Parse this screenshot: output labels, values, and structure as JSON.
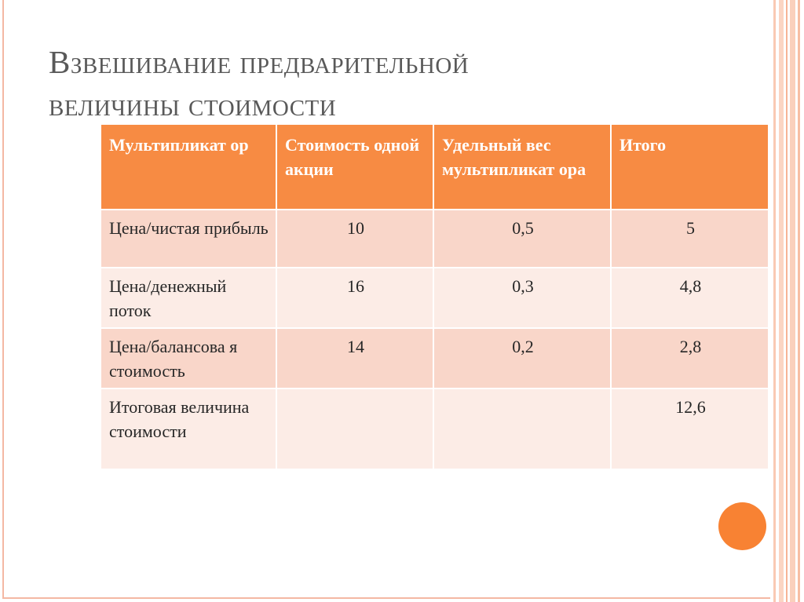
{
  "slide": {
    "title_line1": "Взвешивание предварительной",
    "title_line2": "величины стоимости"
  },
  "table": {
    "headers": [
      "Мультипликат ор",
      "Стоимость одной акции",
      "Удельный вес мультипликат ора",
      "Итого"
    ],
    "rows": [
      {
        "multiplier": "Цена/чистая прибыль",
        "price": "10",
        "weight": "0,5",
        "total": "5"
      },
      {
        "multiplier": "Цена/денежный поток",
        "price": "16",
        "weight": "0,3",
        "total": "4,8"
      },
      {
        "multiplier": "Цена/балансова я стоимость",
        "price": "14",
        "weight": "0,2",
        "total": "2,8"
      },
      {
        "multiplier": "Итоговая величина стоимости",
        "price": "",
        "weight": "",
        "total": "12,6"
      }
    ]
  },
  "colors": {
    "header_bg": "#f78b43",
    "row_odd_bg": "#f9d6c9",
    "row_even_bg": "#fcece6",
    "accent_circle": "#f88233",
    "title_text": "#595959"
  }
}
